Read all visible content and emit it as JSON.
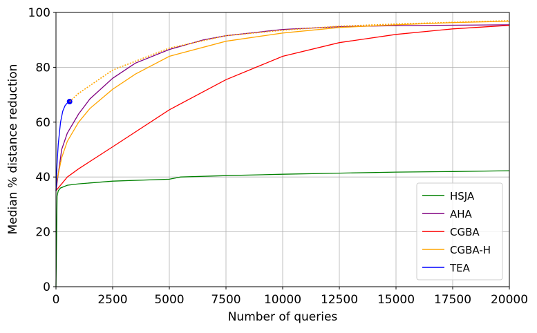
{
  "chart_data": {
    "type": "line",
    "x_label": "Number of queries",
    "y_label": "Median % distance reduction",
    "xlim": [
      0,
      20000
    ],
    "xticks": [
      0,
      2500,
      5000,
      7500,
      10000,
      12500,
      15000,
      17500,
      20000
    ],
    "ylim": [
      0,
      100
    ],
    "yticks": [
      0,
      20,
      40,
      60,
      80,
      100
    ],
    "grid": true,
    "legend": "lower right",
    "series": [
      {
        "name": "HSJA",
        "color": "#008000",
        "x": [
          0,
          50,
          100,
          200,
          500,
          1000,
          2500,
          5000,
          5500,
          7500,
          10000,
          12500,
          15000,
          17500,
          20000
        ],
        "values": [
          0,
          33,
          35,
          36,
          37,
          37.5,
          38.5,
          39.2,
          40,
          40.5,
          41,
          41.4,
          41.8,
          42,
          42.3
        ]
      },
      {
        "name": "AHA",
        "color": "#800080",
        "x": [
          0,
          250,
          500,
          1000,
          1500,
          2500,
          3500,
          5000,
          6500,
          7500,
          10000,
          12500,
          15000,
          20000
        ],
        "values": [
          35,
          50,
          56,
          63,
          68.5,
          76,
          81.5,
          86.5,
          90,
          91.5,
          93.8,
          94.8,
          95.2,
          95.5
        ]
      },
      {
        "name": "CGBA",
        "color": "#ff0000",
        "x": [
          0,
          500,
          1000,
          2500,
          5000,
          7500,
          10000,
          12500,
          15000,
          17500,
          20000
        ],
        "values": [
          35,
          40,
          43,
          51,
          64.5,
          75.5,
          84,
          89,
          92,
          94,
          95.3
        ]
      },
      {
        "name": "CGBA-H",
        "color": "#ffa500",
        "x": [
          0,
          250,
          500,
          1000,
          1500,
          2500,
          3500,
          5000,
          7500,
          10000,
          12500,
          15000,
          17500,
          20000
        ],
        "values": [
          37,
          47,
          53,
          60,
          65,
          72,
          77.5,
          84,
          89.5,
          92.5,
          94.5,
          95.5,
          96.3,
          96.8
        ]
      },
      {
        "name": "TEA",
        "color": "#0000ff",
        "end_marker": true,
        "x": [
          0,
          50,
          100,
          200,
          300,
          400,
          500,
          600
        ],
        "values": [
          35,
          45,
          52,
          60,
          64,
          66,
          67,
          67.5
        ]
      },
      {
        "color": "#ffa500",
        "dashed": true,
        "x": [
          600,
          1000,
          2500,
          5000,
          7500,
          10000,
          12500,
          15000,
          20000
        ],
        "values": [
          67.5,
          70.5,
          79,
          87,
          91.5,
          93.5,
          95,
          95.8,
          97
        ]
      }
    ]
  }
}
